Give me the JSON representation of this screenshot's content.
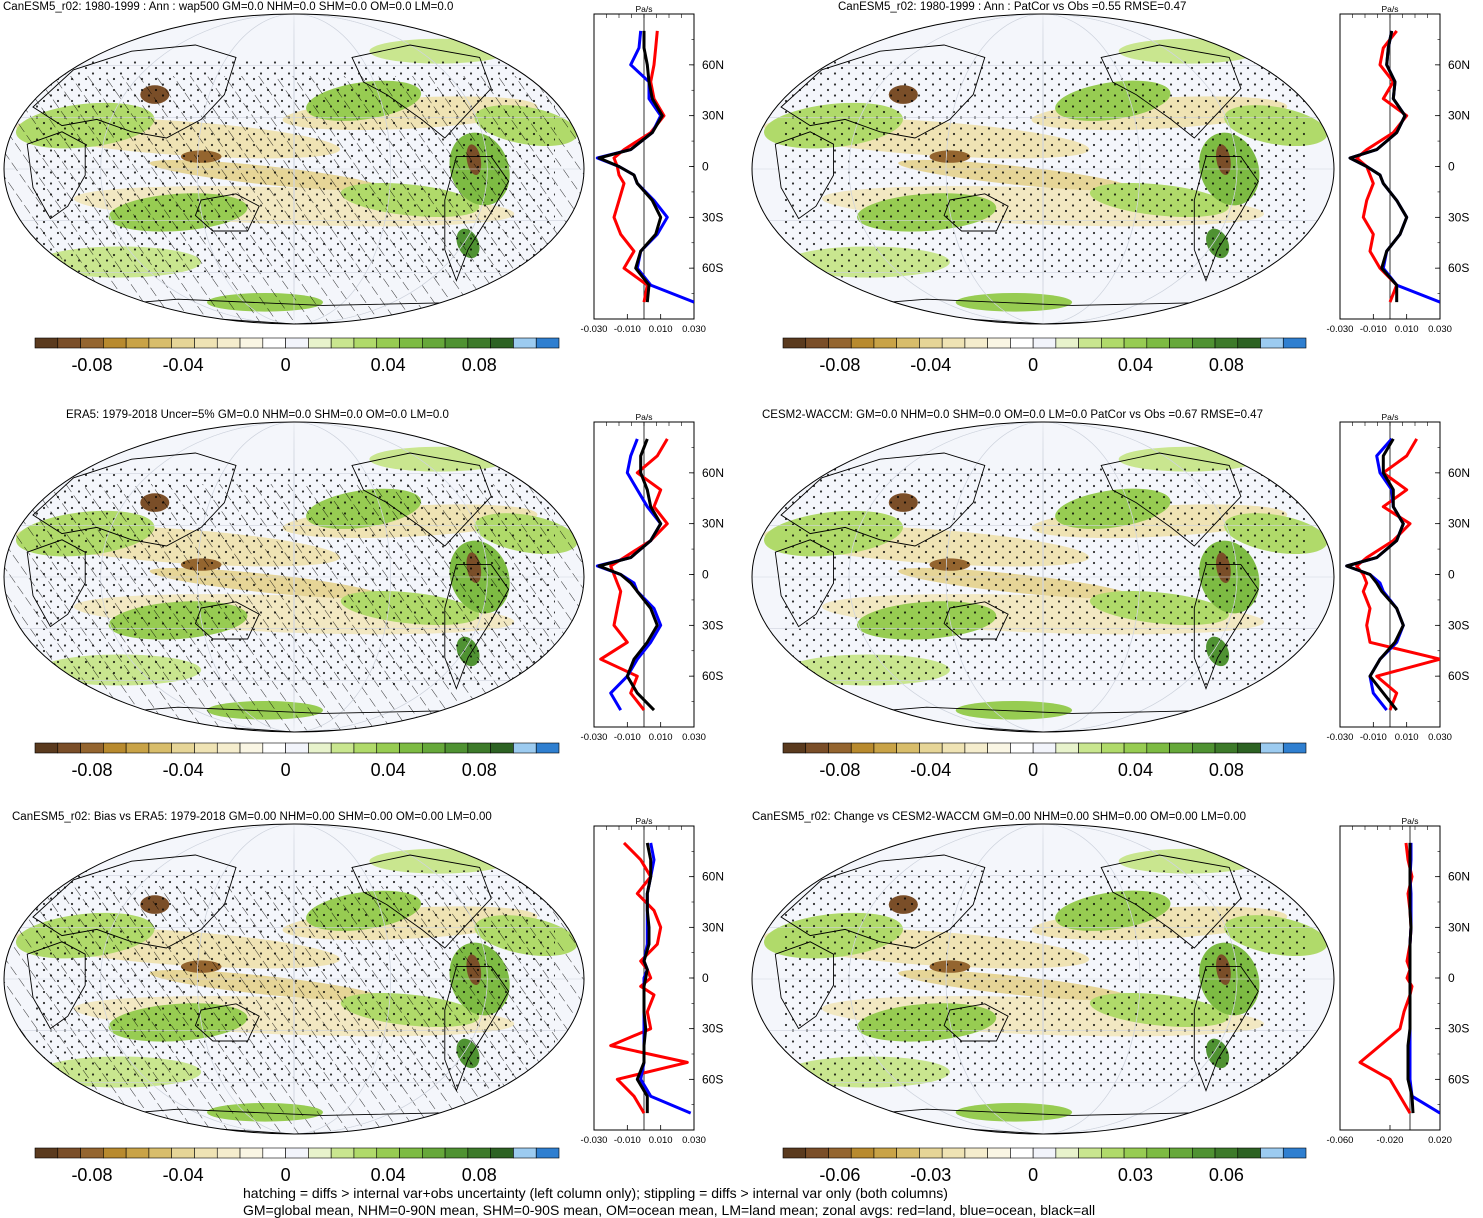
{
  "figure": {
    "footnote_lines": [
      "hatching = diffs > internal var+obs uncertainty (left column only); stippling = diffs > internal var only (both columns)",
      "GM=global mean, NHM=0-90N mean, SHM=0-90S mean, OM=ocean mean, LM=land mean; zonal avgs: red=land, blue=ocean, black=all"
    ],
    "colors": {
      "land_line": "#ff0000",
      "ocean_line": "#0000ff",
      "all_line": "#000000",
      "colorbar": [
        "#5a3a1e",
        "#7a4e28",
        "#94652f",
        "#b88a2e",
        "#c9a347",
        "#d8bd6b",
        "#e6d597",
        "#efe3b4",
        "#f5edcd",
        "#faf6e4",
        "#ffffff",
        "#f2f4fb",
        "#e8f3cc",
        "#c9e68f",
        "#b0da6a",
        "#97cc52",
        "#7dbb43",
        "#66a83a",
        "#4f9232",
        "#3d7a2a",
        "#2d6223",
        "#9ccbf0",
        "#2f7fd0"
      ]
    },
    "panels": [
      {
        "title": "CanESM5_r02: 1980-1999 : Ann : wap500 GM=0.0 NHM=0.0 SHM=0.0 OM=0.0 LM=0.0",
        "hatching": true,
        "colorbar_labels": [
          "-0.08",
          "-0.04",
          "0",
          "0.04",
          "0.08"
        ],
        "zonal_unit": "Pa/s",
        "zonal_lat_ticks": [
          "60N",
          "30N",
          "0",
          "30S",
          "60S"
        ],
        "zonal_x_ticks": [
          "-0.030",
          "-0.010",
          "0.010",
          "0.030"
        ]
      },
      {
        "title": "CanESM5_r02: 1980-1999 : Ann : PatCor vs Obs =0.55 RMSE=0.47",
        "hatching": false,
        "colorbar_labels": [
          "-0.08",
          "-0.04",
          "0",
          "0.04",
          "0.08"
        ],
        "zonal_unit": "Pa/s",
        "zonal_lat_ticks": [
          "60N",
          "30N",
          "0",
          "30S",
          "60S"
        ],
        "zonal_x_ticks": [
          "-0.030",
          "-0.010",
          "0.010",
          "0.030"
        ]
      },
      {
        "title": "ERA5: 1979-2018 Uncer=5% GM=0.0 NHM=0.0 SHM=0.0 OM=0.0 LM=0.0",
        "hatching": true,
        "colorbar_labels": [
          "-0.08",
          "-0.04",
          "0",
          "0.04",
          "0.08"
        ],
        "zonal_unit": "Pa/s",
        "zonal_lat_ticks": [
          "60N",
          "30N",
          "0",
          "30S",
          "60S"
        ],
        "zonal_x_ticks": [
          "-0.030",
          "-0.010",
          "0.010",
          "0.030"
        ]
      },
      {
        "title": "CESM2-WACCM: GM=0.0 NHM=0.0 SHM=0.0 OM=0.0 LM=0.0 PatCor vs Obs =0.67 RMSE=0.47",
        "hatching": false,
        "colorbar_labels": [
          "-0.08",
          "-0.04",
          "0",
          "0.04",
          "0.08"
        ],
        "zonal_unit": "Pa/s",
        "zonal_lat_ticks": [
          "60N",
          "30N",
          "0",
          "30S",
          "60S"
        ],
        "zonal_x_ticks": [
          "-0.030",
          "-0.010",
          "0.010",
          "0.030"
        ]
      },
      {
        "title": "CanESM5_r02: Bias vs ERA5: 1979-2018 GM=0.00 NHM=0.00 SHM=0.00 OM=0.00 LM=0.00",
        "hatching": true,
        "colorbar_labels": [
          "-0.08",
          "-0.04",
          "0",
          "0.04",
          "0.08"
        ],
        "zonal_unit": "Pa/s",
        "zonal_lat_ticks": [
          "60N",
          "30N",
          "0",
          "30S",
          "60S"
        ],
        "zonal_x_ticks": [
          "-0.030",
          "-0.010",
          "0.010",
          "0.030"
        ]
      },
      {
        "title": "CanESM5_r02: Change vs CESM2-WACCM GM=0.00 NHM=0.00 SHM=0.00 OM=0.00 LM=0.00",
        "hatching": false,
        "colorbar_labels": [
          "-0.06",
          "-0.03",
          "0",
          "0.03",
          "0.06"
        ],
        "zonal_unit": "Pa/s",
        "zonal_lat_ticks": [
          "60N",
          "30N",
          "0",
          "30S",
          "60S"
        ],
        "zonal_x_ticks": [
          "-0.060",
          "-0.020",
          "0.020"
        ]
      }
    ]
  },
  "chart_data": [
    {
      "type": "line",
      "panel": 1,
      "ylabel": "",
      "x_unit": "Pa/s",
      "xlim": [
        -0.03,
        0.03
      ],
      "ylim": [
        -90,
        90
      ],
      "lat": [
        80,
        70,
        60,
        50,
        40,
        30,
        20,
        10,
        5,
        0,
        -5,
        -10,
        -20,
        -30,
        -40,
        -50,
        -60,
        -70,
        -80
      ],
      "series": [
        {
          "name": "land",
          "color": "#ff0000",
          "values": [
            0.008,
            0.007,
            0.006,
            0.004,
            0.006,
            0.012,
            0.004,
            -0.012,
            -0.018,
            -0.016,
            -0.015,
            -0.012,
            -0.015,
            -0.018,
            -0.014,
            -0.006,
            -0.012,
            0.002,
            0.0
          ]
        },
        {
          "name": "ocean",
          "color": "#0000ff",
          "values": [
            -0.002,
            -0.003,
            -0.008,
            0.003,
            0.003,
            0.01,
            0.005,
            -0.008,
            -0.028,
            -0.015,
            -0.006,
            -0.004,
            0.006,
            0.014,
            0.008,
            -0.002,
            -0.004,
            0.004,
            0.03
          ]
        },
        {
          "name": "all",
          "color": "#000000",
          "values": [
            0.0,
            0.0,
            0.002,
            0.003,
            0.005,
            0.011,
            0.005,
            -0.008,
            -0.027,
            -0.015,
            -0.006,
            -0.004,
            0.005,
            0.01,
            0.007,
            -0.002,
            -0.005,
            0.003,
            0.002
          ]
        }
      ]
    },
    {
      "type": "line",
      "panel": 2,
      "ylabel": "",
      "x_unit": "Pa/s",
      "xlim": [
        -0.03,
        0.03
      ],
      "ylim": [
        -90,
        90
      ],
      "lat": [
        80,
        70,
        60,
        50,
        40,
        30,
        20,
        10,
        5,
        0,
        -5,
        -10,
        -20,
        -30,
        -40,
        -50,
        -60,
        -70,
        -80
      ],
      "series": [
        {
          "name": "land",
          "color": "#ff0000",
          "values": [
            0.004,
            -0.004,
            -0.006,
            0.002,
            -0.004,
            0.01,
            0.002,
            -0.014,
            -0.02,
            -0.014,
            -0.012,
            -0.01,
            -0.014,
            -0.016,
            -0.01,
            -0.012,
            -0.006,
            0.004,
            0.0
          ]
        },
        {
          "name": "ocean",
          "color": "#0000ff",
          "values": [
            0.001,
            -0.001,
            -0.002,
            0.003,
            0.002,
            0.009,
            0.004,
            -0.008,
            -0.024,
            -0.014,
            -0.006,
            -0.004,
            0.004,
            0.01,
            0.006,
            -0.002,
            -0.004,
            0.004,
            0.03
          ]
        },
        {
          "name": "all",
          "color": "#000000",
          "values": [
            0.001,
            -0.001,
            -0.002,
            0.003,
            0.002,
            0.009,
            0.004,
            -0.008,
            -0.024,
            -0.014,
            -0.006,
            -0.004,
            0.004,
            0.01,
            0.006,
            -0.002,
            -0.005,
            0.004,
            0.004
          ]
        }
      ]
    },
    {
      "type": "line",
      "panel": 3,
      "ylabel": "",
      "x_unit": "Pa/s",
      "xlim": [
        -0.03,
        0.03
      ],
      "ylim": [
        -90,
        90
      ],
      "lat": [
        80,
        70,
        60,
        50,
        40,
        30,
        20,
        10,
        5,
        0,
        -5,
        -10,
        -20,
        -30,
        -40,
        -50,
        -60,
        -70,
        -80
      ],
      "series": [
        {
          "name": "land",
          "color": "#ff0000",
          "values": [
            0.014,
            0.008,
            -0.004,
            0.01,
            0.006,
            0.014,
            0.004,
            -0.012,
            -0.02,
            -0.018,
            -0.016,
            -0.014,
            -0.016,
            -0.018,
            -0.01,
            -0.026,
            -0.004,
            -0.008,
            0.0
          ]
        },
        {
          "name": "ocean",
          "color": "#0000ff",
          "values": [
            -0.004,
            -0.008,
            -0.01,
            -0.004,
            0.002,
            0.01,
            0.004,
            -0.008,
            -0.028,
            -0.014,
            -0.006,
            -0.004,
            0.006,
            0.01,
            0.004,
            -0.004,
            -0.01,
            -0.02,
            -0.014
          ]
        },
        {
          "name": "all",
          "color": "#000000",
          "values": [
            0.002,
            -0.002,
            -0.002,
            0.002,
            0.004,
            0.01,
            0.004,
            -0.008,
            -0.027,
            -0.014,
            -0.008,
            -0.004,
            0.004,
            0.008,
            0.002,
            -0.006,
            -0.01,
            -0.004,
            0.006
          ]
        }
      ]
    },
    {
      "type": "line",
      "panel": 4,
      "ylabel": "",
      "x_unit": "Pa/s",
      "xlim": [
        -0.03,
        0.03
      ],
      "ylim": [
        -90,
        90
      ],
      "lat": [
        80,
        70,
        60,
        50,
        40,
        30,
        20,
        10,
        5,
        0,
        -5,
        -10,
        -20,
        -30,
        -40,
        -50,
        -60,
        -70,
        -80
      ],
      "series": [
        {
          "name": "land",
          "color": "#ff0000",
          "values": [
            0.016,
            0.01,
            -0.004,
            0.01,
            -0.004,
            0.012,
            0.002,
            -0.014,
            -0.02,
            -0.016,
            -0.014,
            -0.016,
            -0.012,
            -0.014,
            -0.012,
            0.03,
            -0.008,
            0.004,
            0.0
          ]
        },
        {
          "name": "ocean",
          "color": "#0000ff",
          "values": [
            0.001,
            -0.008,
            -0.006,
            0.001,
            0.002,
            0.008,
            0.004,
            -0.008,
            -0.026,
            -0.012,
            -0.006,
            -0.004,
            0.004,
            0.008,
            0.004,
            -0.006,
            -0.012,
            -0.01,
            -0.002
          ]
        },
        {
          "name": "all",
          "color": "#000000",
          "values": [
            0.002,
            -0.004,
            -0.004,
            0.002,
            0.002,
            0.008,
            0.004,
            -0.008,
            -0.026,
            -0.012,
            -0.008,
            -0.005,
            0.004,
            0.008,
            0.003,
            -0.006,
            -0.012,
            -0.004,
            0.004
          ]
        }
      ]
    },
    {
      "type": "line",
      "panel": 5,
      "ylabel": "",
      "x_unit": "Pa/s",
      "xlim": [
        -0.03,
        0.03
      ],
      "ylim": [
        -90,
        90
      ],
      "lat": [
        80,
        70,
        60,
        50,
        40,
        30,
        20,
        10,
        5,
        0,
        -5,
        -10,
        -20,
        -30,
        -40,
        -50,
        -60,
        -70,
        -80
      ],
      "series": [
        {
          "name": "land",
          "color": "#ff0000",
          "values": [
            -0.012,
            -0.002,
            0.004,
            -0.004,
            0.006,
            0.01,
            0.008,
            -0.002,
            0.002,
            0.004,
            -0.002,
            0.006,
            0.002,
            0.004,
            -0.02,
            0.026,
            -0.016,
            -0.006,
            0.0
          ]
        },
        {
          "name": "ocean",
          "color": "#0000ff",
          "values": [
            0.004,
            0.006,
            0.004,
            0.002,
            0.002,
            0.002,
            0.002,
            0.0,
            0.002,
            0.0,
            0.0,
            0.0,
            0.0,
            0.0,
            0.0,
            0.0,
            -0.002,
            0.004,
            0.028
          ]
        },
        {
          "name": "all",
          "color": "#000000",
          "values": [
            0.002,
            0.004,
            0.004,
            0.002,
            0.002,
            0.003,
            0.003,
            0.0,
            0.002,
            0.001,
            0.0,
            0.0,
            0.0,
            0.001,
            0.0,
            0.0,
            -0.004,
            0.002,
            0.002
          ]
        }
      ]
    },
    {
      "type": "line",
      "panel": 6,
      "ylabel": "",
      "x_unit": "Pa/s",
      "xlim": [
        -0.07,
        0.03
      ],
      "ylim": [
        -90,
        90
      ],
      "lat": [
        80,
        70,
        60,
        50,
        40,
        30,
        20,
        10,
        5,
        0,
        -5,
        -10,
        -20,
        -30,
        -40,
        -50,
        -60,
        -70,
        -80
      ],
      "series": [
        {
          "name": "land",
          "color": "#ff0000",
          "values": [
            -0.004,
            -0.002,
            0.002,
            -0.002,
            0.0,
            0.001,
            0.0,
            -0.003,
            0.0,
            -0.003,
            0.002,
            0.0,
            -0.006,
            -0.01,
            -0.03,
            -0.05,
            -0.02,
            -0.01,
            0.0
          ]
        },
        {
          "name": "ocean",
          "color": "#0000ff",
          "values": [
            0.001,
            0.001,
            0.0,
            0.001,
            0.001,
            0.001,
            0.0,
            0.0,
            0.0,
            0.0,
            0.0,
            0.0,
            0.0,
            0.0,
            0.0,
            0.0,
            0.0,
            0.002,
            0.03
          ]
        },
        {
          "name": "all",
          "color": "#000000",
          "values": [
            0.0,
            0.0,
            0.0,
            0.0,
            0.0,
            0.001,
            0.0,
            0.0,
            0.0,
            0.0,
            0.0,
            0.0,
            0.0,
            0.0,
            -0.002,
            -0.002,
            -0.002,
            0.002,
            0.003
          ]
        }
      ]
    }
  ]
}
